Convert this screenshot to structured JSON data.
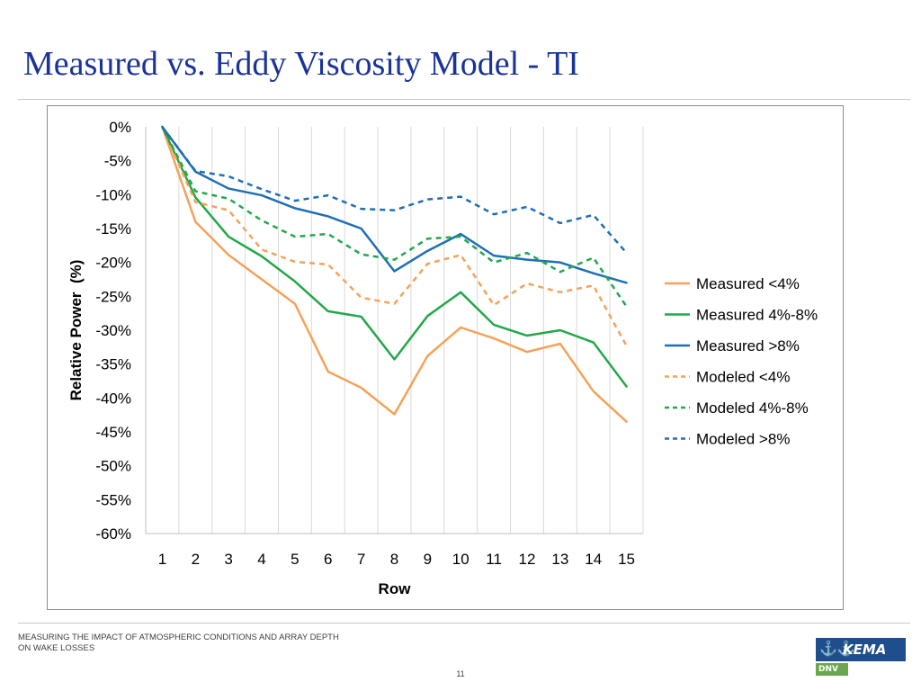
{
  "slide": {
    "title": "Measured vs. Eddy Viscosity Model - TI",
    "footer": "MEASURING THE IMPACT OF ATMOSPHERIC CONDITIONS AND ARRAY DEPTH ON WAKE LOSSES",
    "page_number": "11",
    "logo": {
      "word": "KEMA",
      "sub": "DNV",
      "icon": "anchors-icon"
    }
  },
  "chart_data": {
    "type": "line",
    "xlabel": "Row",
    "ylabel": "Relative Power  (%)",
    "x": [
      1,
      2,
      3,
      4,
      5,
      6,
      7,
      8,
      9,
      10,
      11,
      12,
      13,
      14,
      15
    ],
    "ylim": [
      -60,
      0
    ],
    "yticks": [
      0,
      -5,
      -10,
      -15,
      -20,
      -25,
      -30,
      -35,
      -40,
      -45,
      -50,
      -55,
      -60
    ],
    "ytick_labels": [
      "0%",
      "-5%",
      "-10%",
      "-15%",
      "-20%",
      "-25%",
      "-30%",
      "-35%",
      "-40%",
      "-45%",
      "-50%",
      "-55%",
      "-60%"
    ],
    "grid": "vertical",
    "legend": "right",
    "series": [
      {
        "name": "Measured <4%",
        "color": "#f4a259",
        "dash": "solid",
        "values": [
          0,
          -14.0,
          -18.9,
          -22.5,
          -26.1,
          -36.1,
          -38.5,
          -42.4,
          -33.8,
          -29.6,
          -31.2,
          -33.2,
          -32.0,
          -39.0,
          -43.5
        ]
      },
      {
        "name": "Measured 4%-8%",
        "color": "#22a84a",
        "dash": "solid",
        "values": [
          0,
          -10.4,
          -16.2,
          -19.1,
          -22.8,
          -27.2,
          -28.0,
          -34.3,
          -27.9,
          -24.4,
          -29.2,
          -30.8,
          -30.0,
          -31.8,
          -38.3
        ]
      },
      {
        "name": "Measured >8%",
        "color": "#1f6fb5",
        "dash": "solid",
        "values": [
          0,
          -6.6,
          -9.1,
          -10.1,
          -12.0,
          -13.2,
          -15.0,
          -21.3,
          -18.3,
          -15.8,
          -19.0,
          -19.6,
          -20.0,
          -21.6,
          -23.0
        ]
      },
      {
        "name": "Modeled <4%",
        "color": "#f4a259",
        "dash": "dashed",
        "values": [
          0,
          -11.1,
          -12.3,
          -18.1,
          -19.9,
          -20.3,
          -25.2,
          -26.1,
          -20.2,
          -18.9,
          -26.3,
          -23.1,
          -24.4,
          -23.4,
          -32.3
        ]
      },
      {
        "name": "Modeled 4%-8%",
        "color": "#22a84a",
        "dash": "dashed",
        "values": [
          0,
          -9.5,
          -10.6,
          -13.8,
          -16.2,
          -15.8,
          -18.8,
          -19.6,
          -16.5,
          -16.2,
          -20.0,
          -18.6,
          -21.4,
          -19.3,
          -26.5
        ]
      },
      {
        "name": "Modeled >8%",
        "color": "#1f6fb5",
        "dash": "dashed",
        "values": [
          0,
          -6.5,
          -7.3,
          -9.2,
          -10.9,
          -10.1,
          -12.1,
          -12.3,
          -10.7,
          -10.3,
          -12.9,
          -11.8,
          -14.2,
          -13.0,
          -18.6
        ]
      }
    ]
  }
}
